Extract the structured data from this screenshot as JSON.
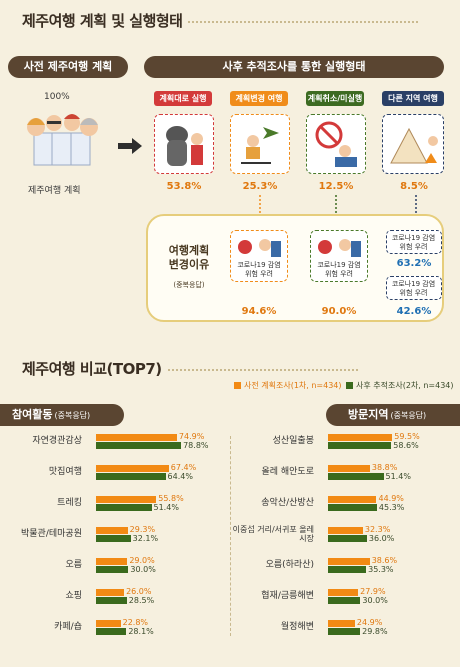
{
  "section1": {
    "title": "제주여행 계획 및 실행형태",
    "left_pill": "사전 제주여행 계획",
    "right_pill": "사후 추적조사를 통한 실행형태",
    "pre_pct": "100%",
    "pre_label": "제주여행 계획",
    "types": [
      {
        "label": "계획대로 실행",
        "pct": "53.8%",
        "color": "#d33a3a"
      },
      {
        "label": "계획변경 여행",
        "pct": "25.3%",
        "color": "#f08c1a"
      },
      {
        "label": "계획취소/미실행",
        "pct": "12.5%",
        "color": "#3d6b22"
      },
      {
        "label": "다른 지역 여행",
        "pct": "8.5%",
        "color": "#2a3f66"
      }
    ],
    "reason": {
      "title_line1": "여행계획",
      "title_line2": "변경이유",
      "note": "(중복응답)",
      "items": [
        {
          "text_line1": "코로나19 감염",
          "text_line2": "위험 우려",
          "pct": "94.6%"
        },
        {
          "text_line1": "코로나19 감염",
          "text_line2": "위험 우려",
          "pct": "90.0%"
        },
        {
          "text_line1": "코로나19 감염",
          "text_line2": "위험 우려",
          "pct": "63.2%"
        },
        {
          "text_line1": "코로나19 감염",
          "text_line2": "위험 우려",
          "pct": "42.6%"
        }
      ]
    }
  },
  "section2": {
    "title": "제주여행 비교(TOP7)",
    "legend": {
      "series1": "사전 계획조사(1차, n=434)",
      "series2": "사후 추적조사(2차, n=434)",
      "color1": "#f28a14",
      "color2": "#3a6a1d"
    }
  },
  "chart_data": [
    {
      "type": "bar",
      "title": "참여활동",
      "subtitle": "(중복응답)",
      "categories": [
        "자연경관감상",
        "맛집여행",
        "트레킹",
        "박물관/테마공원",
        "오름",
        "쇼핑",
        "카페/숍"
      ],
      "series": [
        {
          "name": "사전 계획조사(1차, n=434)",
          "values": [
            74.9,
            67.4,
            55.8,
            29.3,
            29.0,
            26.0,
            22.8
          ]
        },
        {
          "name": "사후 추적조사(2차, n=434)",
          "values": [
            78.8,
            64.4,
            51.4,
            32.1,
            30.0,
            28.5,
            28.1
          ]
        }
      ],
      "value_labels": {
        "series1": [
          "74.9%",
          "67.4%",
          "55.8%",
          "29.3%",
          "29.0%",
          "26.0%",
          "22.8%"
        ],
        "series2": [
          "78.8%",
          "64.4%",
          "51.4%",
          "32.1%",
          "30.0%",
          "28.5%",
          "28.1%"
        ]
      },
      "xlim": [
        0,
        100
      ]
    },
    {
      "type": "bar",
      "title": "방문지역",
      "subtitle": "(중복응답)",
      "categories": [
        "성산일출봉",
        "올레 해안도로",
        "송악산/산방산",
        "이중섭 거리/서귀포 올레시장",
        "오름(하라산)",
        "협재/금릉해변",
        "월정해변"
      ],
      "series": [
        {
          "name": "사전 계획조사(1차, n=434)",
          "values": [
            59.5,
            38.8,
            44.9,
            32.3,
            38.6,
            27.9,
            24.9
          ]
        },
        {
          "name": "사후 추적조사(2차, n=434)",
          "values": [
            58.6,
            51.4,
            45.3,
            36.0,
            35.3,
            30.0,
            29.8
          ]
        }
      ],
      "value_labels": {
        "series1": [
          "59.5%",
          "38.8%",
          "44.9%",
          "32.3%",
          "38.6%",
          "27.9%",
          "24.9%"
        ],
        "series2": [
          "58.6%",
          "51.4%",
          "45.3%",
          "36.0%",
          "35.3%",
          "30.0%",
          "29.8%"
        ]
      },
      "xlim": [
        0,
        100
      ]
    }
  ]
}
